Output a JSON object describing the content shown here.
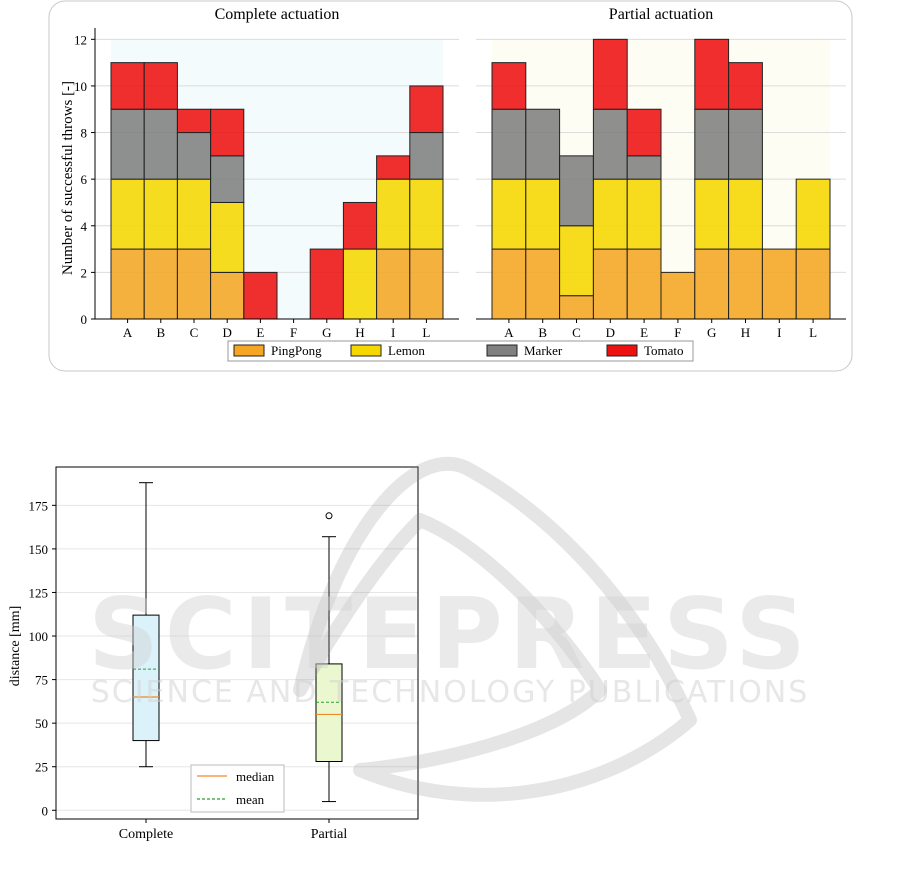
{
  "figure_top": {
    "ylabel": "Number of successful throws [-]",
    "yticks": [
      0,
      2,
      4,
      6,
      8,
      10,
      12
    ],
    "ylim": [
      0,
      12.4
    ],
    "legend": [
      {
        "label": "PingPong",
        "color": "#f5a623"
      },
      {
        "label": "Lemon",
        "color": "#f6d700"
      },
      {
        "label": "Marker",
        "color": "#808080"
      },
      {
        "label": "Tomato",
        "color": "#ee1111"
      }
    ]
  },
  "figure_bottom": {
    "ylabel": "distance [mm]",
    "yticks": [
      0,
      25,
      50,
      75,
      100,
      125,
      150,
      175
    ],
    "ylim": [
      -5,
      197
    ],
    "legend": [
      {
        "label": "median",
        "color": "#f08a24",
        "style": "solid"
      },
      {
        "label": "mean",
        "color": "#2ca02c",
        "style": "dashed"
      }
    ]
  },
  "watermark": {
    "line1": "SCITEPRESS",
    "line2": "SCIENCE AND TECHNOLOGY PUBLICATIONS"
  },
  "chart_data": [
    {
      "type": "bar",
      "title": "Complete actuation",
      "stacked": true,
      "background": "#f3fbfd",
      "categories": [
        "A",
        "B",
        "C",
        "D",
        "E",
        "F",
        "G",
        "H",
        "I",
        "L"
      ],
      "series": [
        {
          "name": "PingPong",
          "color": "#f5a623",
          "values": [
            3,
            3,
            3,
            2,
            0,
            0,
            0,
            0,
            3,
            3
          ]
        },
        {
          "name": "Lemon",
          "color": "#f6d700",
          "values": [
            3,
            3,
            3,
            3,
            0,
            0,
            0,
            3,
            3,
            3
          ]
        },
        {
          "name": "Marker",
          "color": "#808080",
          "values": [
            3,
            3,
            2,
            2,
            0,
            0,
            0,
            0,
            0,
            2
          ]
        },
        {
          "name": "Tomato",
          "color": "#ee1111",
          "values": [
            2,
            2,
            1,
            2,
            2,
            0,
            3,
            2,
            1,
            2
          ]
        }
      ]
    },
    {
      "type": "bar",
      "title": "Partial actuation",
      "stacked": true,
      "background": "#fdfdf3",
      "categories": [
        "A",
        "B",
        "C",
        "D",
        "E",
        "F",
        "G",
        "H",
        "I",
        "L"
      ],
      "series": [
        {
          "name": "PingPong",
          "color": "#f5a623",
          "values": [
            3,
            3,
            1,
            3,
            3,
            2,
            3,
            3,
            3,
            3
          ]
        },
        {
          "name": "Lemon",
          "color": "#f6d700",
          "values": [
            3,
            3,
            3,
            3,
            3,
            0,
            3,
            3,
            0,
            3
          ]
        },
        {
          "name": "Marker",
          "color": "#808080",
          "values": [
            3,
            3,
            3,
            3,
            1,
            0,
            3,
            3,
            0,
            0
          ]
        },
        {
          "name": "Tomato",
          "color": "#ee1111",
          "values": [
            2,
            0,
            0,
            3,
            2,
            0,
            3,
            2,
            0,
            0
          ]
        }
      ]
    },
    {
      "type": "box",
      "categories": [
        "Complete",
        "Partial"
      ],
      "boxes": [
        {
          "name": "Complete",
          "color": "#dbf2fb",
          "whisker_low": 25,
          "q1": 40,
          "median": 65,
          "mean": 81,
          "q3": 112,
          "whisker_high": 188,
          "outliers": []
        },
        {
          "name": "Partial",
          "color": "#eaf7cf",
          "whisker_low": 5,
          "q1": 28,
          "median": 55,
          "mean": 62,
          "q3": 84,
          "whisker_high": 157,
          "outliers": [
            169
          ]
        }
      ]
    }
  ]
}
